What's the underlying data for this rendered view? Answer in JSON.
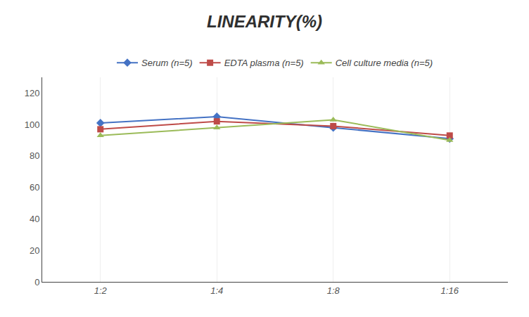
{
  "chart_data": {
    "type": "line",
    "title": "LINEARITY(%)",
    "categories": [
      "1:2",
      "1:4",
      "1:8",
      "1:16"
    ],
    "series": [
      {
        "name": "Serum (n=5)",
        "color": "#4472C4",
        "marker": "diamond",
        "values": [
          101,
          105,
          98,
          91
        ]
      },
      {
        "name": "EDTA plasma (n=5)",
        "color": "#BE4B48",
        "marker": "square",
        "values": [
          97,
          102,
          99,
          93
        ]
      },
      {
        "name": "Cell culture media (n=5)",
        "color": "#9BBB59",
        "marker": "triangle-up",
        "values": [
          93,
          98,
          103,
          90
        ]
      }
    ],
    "ylim": [
      0,
      130
    ],
    "yticks": [
      0,
      20,
      40,
      60,
      80,
      100,
      120
    ],
    "grid": "x",
    "legend": "top"
  }
}
